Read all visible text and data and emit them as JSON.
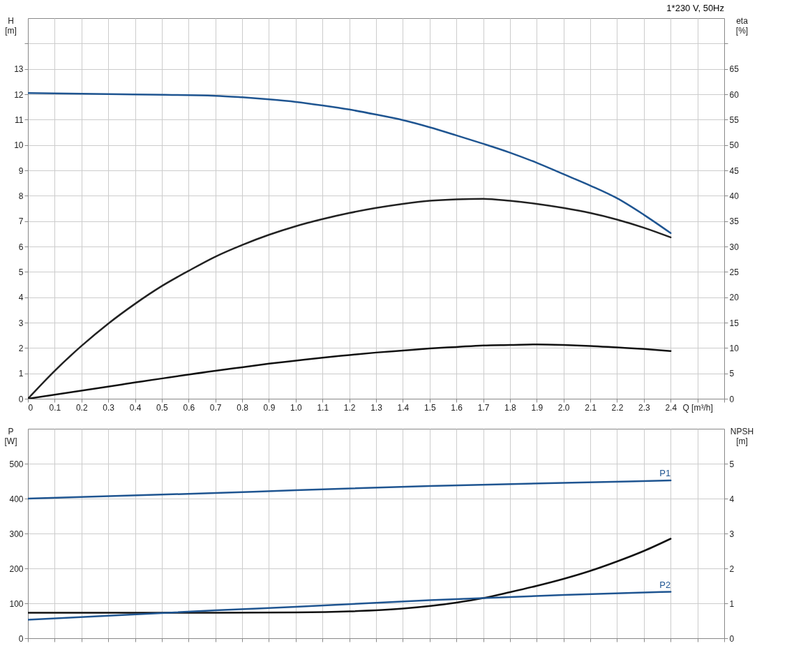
{
  "chart_data": [
    {
      "type": "line",
      "title": "1*230 V, 50Hz",
      "xlabel": "Q [m³/h]",
      "ylabel": "H [m]",
      "y2label": "eta [%]",
      "xlim": [
        0,
        2.6
      ],
      "xticks": [
        0,
        0.1,
        0.2,
        0.3,
        0.4,
        0.5,
        0.6,
        0.7,
        0.8,
        0.9,
        {
          "value": 1,
          "label": "1.0"
        },
        1.1,
        1.2,
        1.3,
        1.4,
        1.5,
        1.6,
        1.7,
        1.8,
        1.9,
        {
          "value": 2,
          "label": "2.0"
        },
        2.1,
        2.2,
        2.3,
        2.4,
        {
          "value": 2.5,
          "label": null
        },
        {
          "value": 2.6,
          "label": null
        }
      ],
      "ylim": [
        0,
        15
      ],
      "yticks": [
        0,
        1,
        2,
        3,
        4,
        5,
        6,
        7,
        8,
        9,
        10,
        11,
        12,
        13,
        {
          "value": 14,
          "label": null
        }
      ],
      "y2lim": [
        0,
        75
      ],
      "y2ticks": [
        0,
        5,
        10,
        15,
        20,
        25,
        30,
        35,
        40,
        45,
        50,
        55,
        60,
        65,
        {
          "value": 70,
          "label": null
        }
      ],
      "grid": true,
      "series": [
        {
          "color": "#1f5591",
          "x": [
            0,
            0.35,
            0.7,
            0.8,
            0.9,
            1.0,
            1.1,
            1.2,
            1.3,
            1.4,
            1.5,
            1.6,
            1.7,
            1.8,
            1.9,
            2.0,
            2.1,
            2.2,
            2.3,
            2.4
          ],
          "values": [
            12.05,
            12.0,
            11.94,
            11.88,
            11.8,
            11.7,
            11.56,
            11.4,
            11.2,
            10.98,
            10.7,
            10.38,
            10.05,
            9.7,
            9.3,
            8.85,
            8.4,
            7.9,
            7.25,
            6.53
          ]
        },
        {
          "color": "#222222",
          "axis": "y2",
          "x": [
            0,
            0.1,
            0.2,
            0.3,
            0.4,
            0.5,
            0.6,
            0.7,
            0.8,
            0.9,
            1.0,
            1.1,
            1.2,
            1.3,
            1.4,
            1.5,
            1.6,
            1.7,
            1.8,
            1.9,
            2.0,
            2.1,
            2.2,
            2.3,
            2.4
          ],
          "values": [
            0,
            5.5,
            10.4,
            14.8,
            18.7,
            22.2,
            25.2,
            28.0,
            30.3,
            32.3,
            34.0,
            35.4,
            36.6,
            37.6,
            38.4,
            39.0,
            39.3,
            39.4,
            39.0,
            38.4,
            37.6,
            36.6,
            35.3,
            33.7,
            31.8
          ]
        },
        {
          "color": "#111111",
          "axis": "y2",
          "x": [
            0,
            0.35,
            0.7,
            0.8,
            0.9,
            1.0,
            1.1,
            1.2,
            1.3,
            1.4,
            1.5,
            1.6,
            1.7,
            1.8,
            1.9,
            2.0,
            2.1,
            2.2,
            2.3,
            2.4
          ],
          "values": [
            0,
            2.8,
            5.5,
            6.2,
            6.9,
            7.5,
            8.1,
            8.6,
            9.1,
            9.5,
            9.9,
            10.2,
            10.5,
            10.6,
            10.7,
            10.6,
            10.4,
            10.1,
            9.8,
            9.4
          ]
        }
      ]
    },
    {
      "type": "line",
      "ylabel": "P [W]",
      "y2label": "NPSH [m]",
      "xlim": [
        0,
        2.6
      ],
      "xticks": [
        0,
        0.1,
        0.2,
        0.3,
        0.4,
        0.5,
        0.6,
        0.7,
        0.8,
        0.9,
        1,
        1.1,
        1.2,
        1.3,
        1.4,
        1.5,
        1.6,
        1.7,
        1.8,
        1.9,
        2,
        2.1,
        2.2,
        2.3,
        2.4,
        2.5,
        2.6
      ],
      "ylim": [
        0,
        600
      ],
      "yticks": [
        0,
        100,
        200,
        300,
        400,
        500
      ],
      "y2lim": [
        0,
        6
      ],
      "y2ticks": [
        0,
        1,
        2,
        3,
        4,
        5
      ],
      "grid": true,
      "tick_labels": "y",
      "series": [
        {
          "name": "P1",
          "color": "#1f5591",
          "x": [
            0,
            0.7,
            1.0,
            1.5,
            2.0,
            2.4
          ],
          "values": [
            400,
            416,
            424,
            436,
            445,
            452
          ]
        },
        {
          "name": "P2",
          "color": "#1f5591",
          "x": [
            0,
            0.7,
            1.0,
            1.5,
            2.0,
            2.4
          ],
          "values": [
            53,
            80,
            90,
            109,
            124,
            133
          ]
        },
        {
          "color": "#111111",
          "axis": "y2",
          "x": [
            0,
            0.7,
            1.0,
            1.2,
            1.4,
            1.6,
            1.7,
            1.8,
            1.9,
            2.0,
            2.1,
            2.2,
            2.3,
            2.4
          ],
          "values": [
            0.73,
            0.73,
            0.74,
            0.77,
            0.85,
            1.02,
            1.15,
            1.32,
            1.5,
            1.7,
            1.93,
            2.2,
            2.5,
            2.85
          ]
        }
      ]
    }
  ]
}
